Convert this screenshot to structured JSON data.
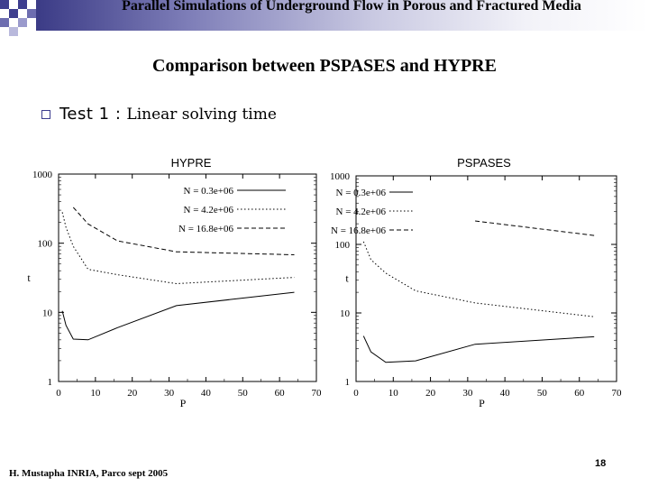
{
  "slide": {
    "title": "Parallel Simulations of Underground Flow in Porous and Fractured Media",
    "subtitle": "Comparison between PSPASES and HYPRE",
    "bullet_lead": "Test 1 :",
    "bullet_rest": "Linear solving time",
    "footer": "H. Mustapha INRIA, Parco sept 2005",
    "page_number": "18"
  },
  "colors": {
    "accent": "#3d3d8f",
    "line": "#000000"
  },
  "chart_data": [
    {
      "type": "line",
      "title": "HYPRE",
      "xlabel": "P",
      "ylabel": "t",
      "xlim": [
        0,
        70
      ],
      "ylim": [
        1,
        1000
      ],
      "yscale": "log",
      "xticks": [
        "0",
        "10",
        "20",
        "30",
        "40",
        "50",
        "60",
        "70"
      ],
      "yticks": [
        "1",
        "10",
        "100",
        "1000"
      ],
      "legend_position": "top-right",
      "series": [
        {
          "name": "N = 0.3e+06",
          "dash": "solid",
          "x": [
            1,
            2,
            4,
            8,
            16,
            32,
            64
          ],
          "y": [
            10.5,
            6.5,
            4.1,
            4.0,
            6.0,
            12.5,
            19.5
          ]
        },
        {
          "name": "N = 4.2e+06",
          "dash": "dotted",
          "x": [
            1,
            2,
            4,
            8,
            16,
            32,
            64
          ],
          "y": [
            280,
            170,
            90,
            42,
            35,
            26,
            32
          ]
        },
        {
          "name": "N = 16.8e+06",
          "dash": "dashed",
          "x": [
            4,
            8,
            16,
            32,
            64
          ],
          "y": [
            330,
            190,
            108,
            75,
            68
          ]
        }
      ]
    },
    {
      "type": "line",
      "title": "PSPASES",
      "xlabel": "P",
      "ylabel": "t",
      "xlim": [
        0,
        70
      ],
      "ylim": [
        1,
        1000
      ],
      "yscale": "log",
      "xticks": [
        "0",
        "10",
        "20",
        "30",
        "40",
        "50",
        "60",
        "70"
      ],
      "yticks": [
        "1",
        "10",
        "100",
        "1000"
      ],
      "legend_position": "top-left",
      "series": [
        {
          "name": "N = 0.3e+06",
          "dash": "solid",
          "x": [
            2,
            4,
            8,
            16,
            32,
            64
          ],
          "y": [
            4.6,
            2.7,
            1.9,
            2.0,
            3.5,
            4.5
          ]
        },
        {
          "name": "N = 4.2e+06",
          "dash": "dotted",
          "x": [
            2,
            4,
            8,
            16,
            32,
            64
          ],
          "y": [
            110,
            60,
            38,
            21,
            14,
            8.8
          ]
        },
        {
          "name": "N = 16.8e+06",
          "dash": "dashed",
          "x": [
            32,
            64
          ],
          "y": [
            220,
            135
          ]
        }
      ]
    }
  ]
}
